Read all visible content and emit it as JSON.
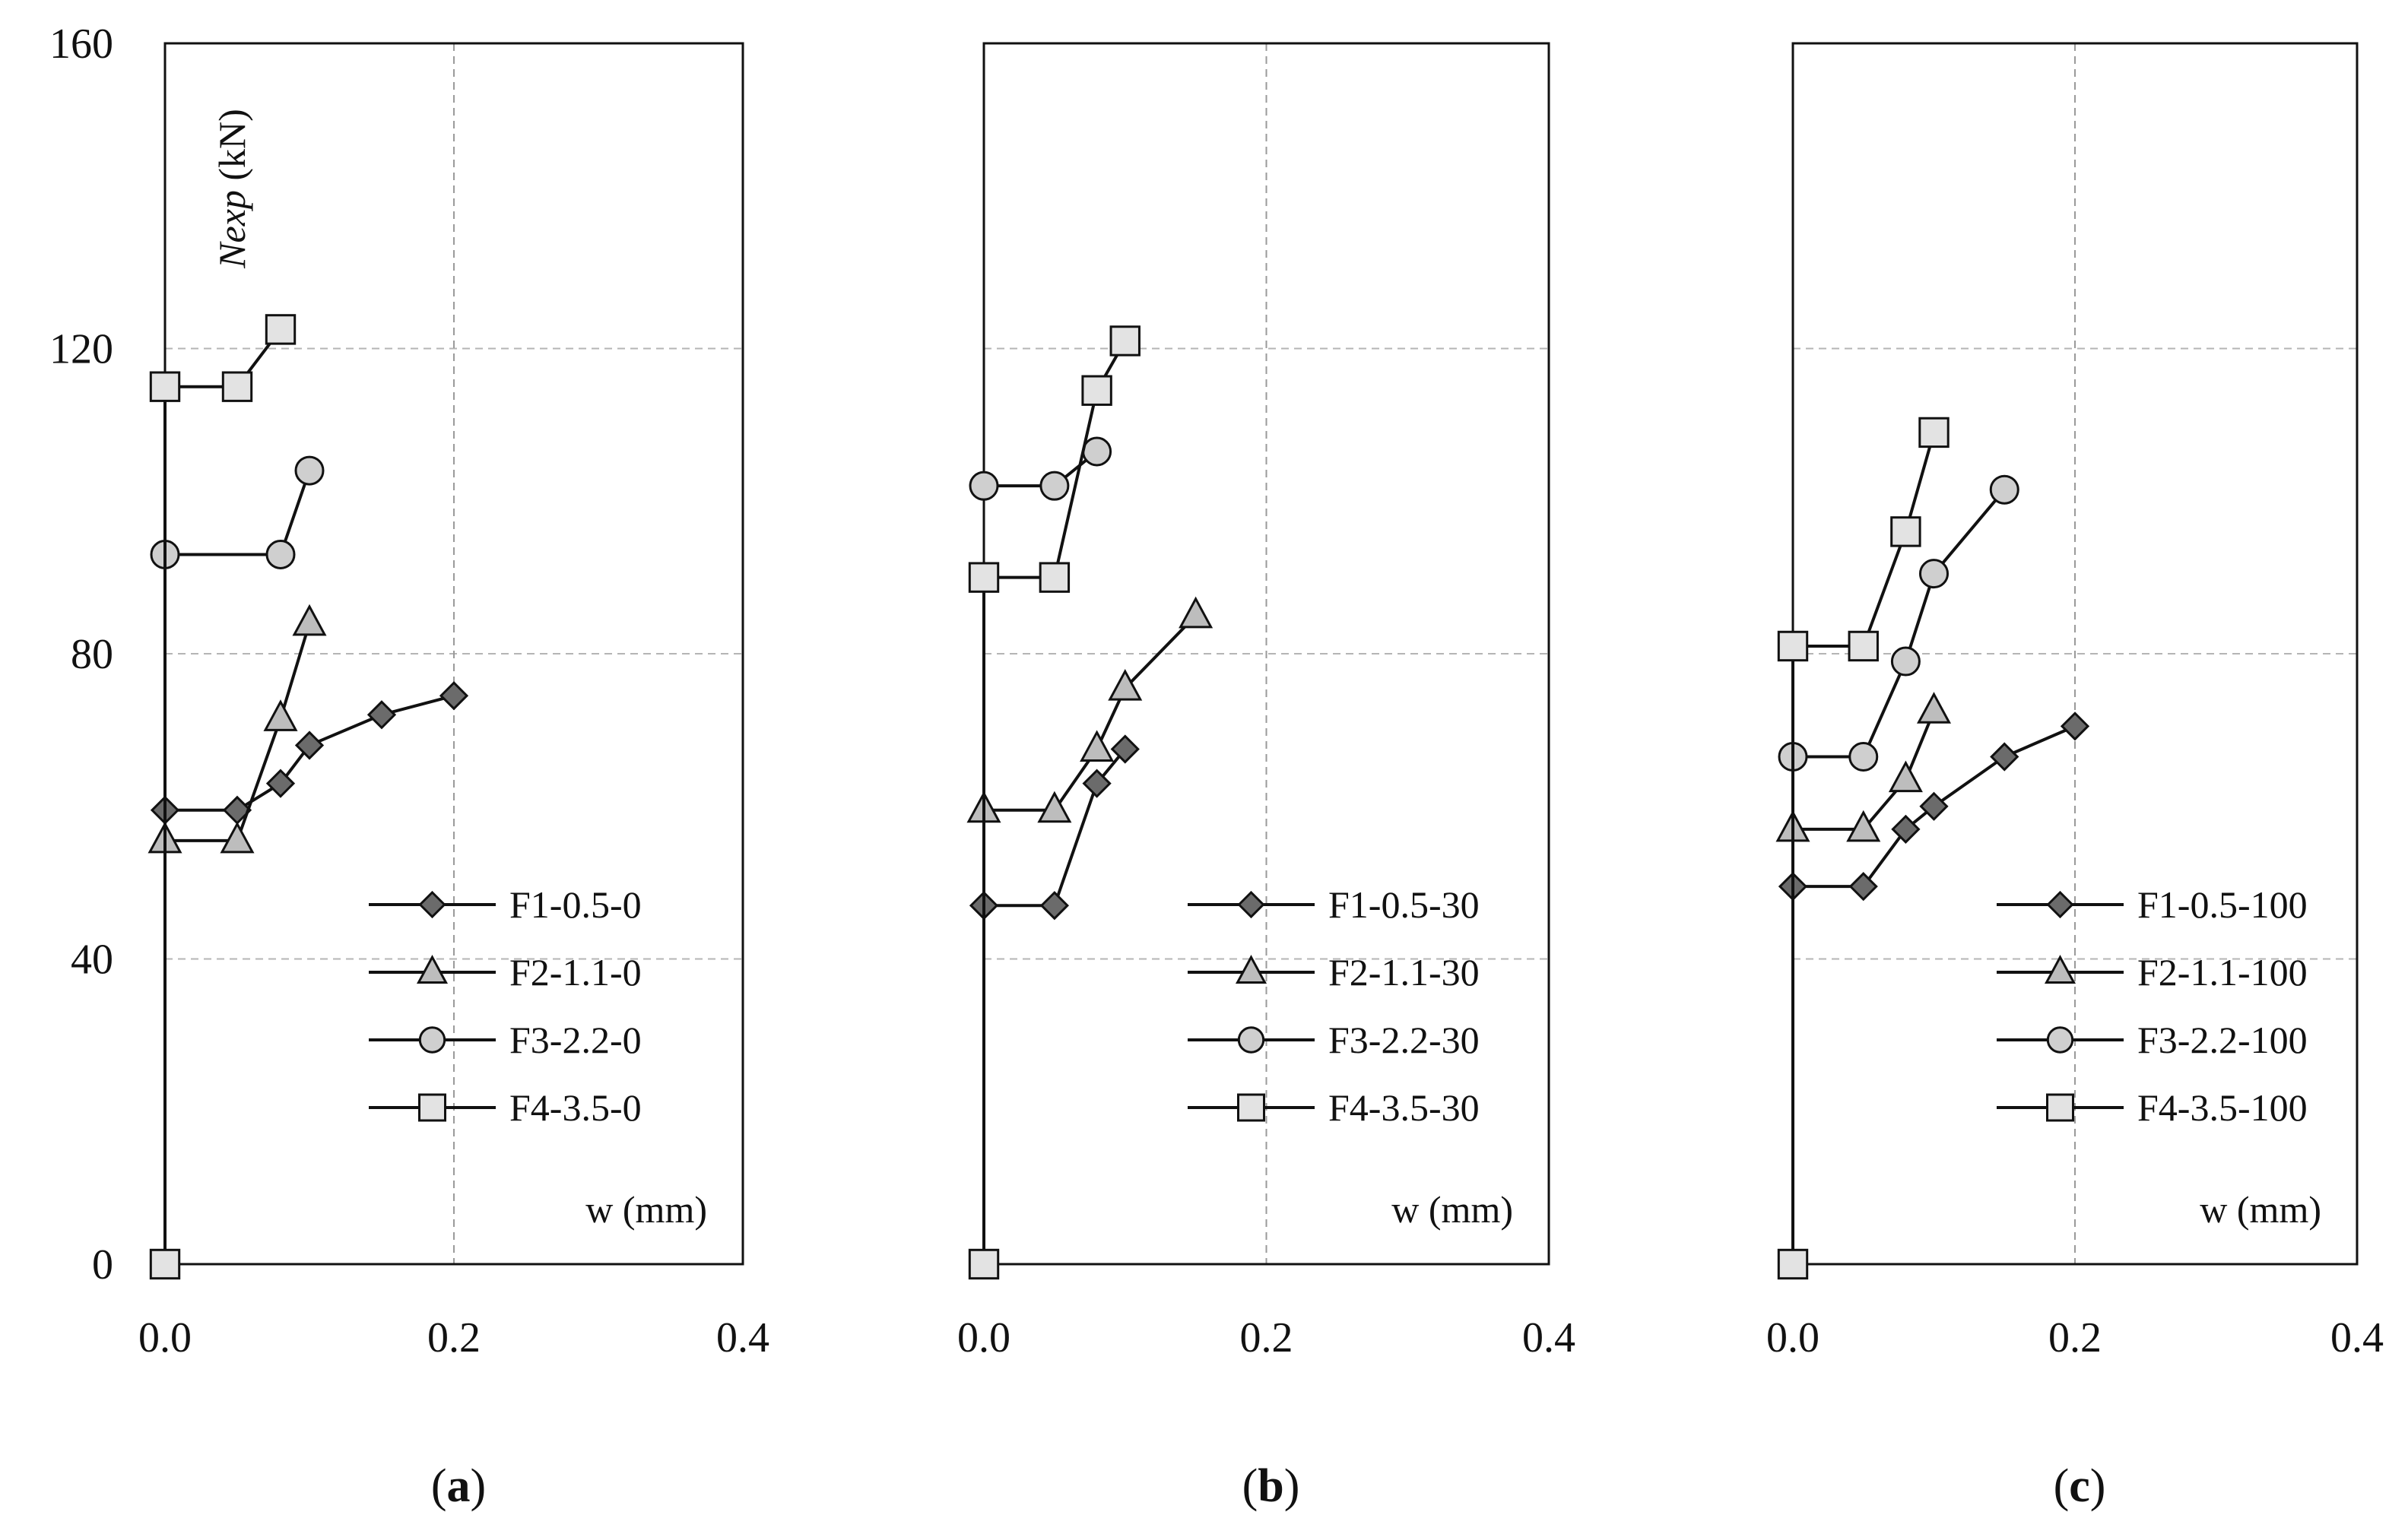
{
  "chart_data": [
    {
      "type": "line",
      "panel_label": [
        "(",
        "a",
        ")"
      ],
      "xlabel": "w (mm)",
      "ylabel": {
        "italic": "Nexp",
        "unit": " (kN)"
      },
      "xlim": [
        0,
        0.4
      ],
      "ylim": [
        0,
        160
      ],
      "x_ticks": [
        "0.0",
        "0.2",
        "0.4"
      ],
      "y_ticks": [
        "0",
        "40",
        "80",
        "120",
        "160"
      ],
      "legend_position": "lower-right",
      "series": [
        {
          "name": "F1-0.5-0",
          "marker": "diamond",
          "x": [
            0,
            0.05,
            0.08,
            0.1,
            0.15,
            0.2
          ],
          "y": [
            59.5,
            59.5,
            63,
            68,
            72,
            74.5
          ]
        },
        {
          "name": "F2-1.1-0",
          "marker": "triangle",
          "x": [
            0,
            0.05,
            0.08,
            0.1
          ],
          "y": [
            55.5,
            55.5,
            71.5,
            84
          ]
        },
        {
          "name": "F3-2.2-0",
          "marker": "circle",
          "x": [
            0,
            0.08,
            0.1
          ],
          "y": [
            93,
            93,
            104
          ]
        },
        {
          "name": "F4-3.5-0",
          "marker": "square",
          "x": [
            0,
            0,
            0.05,
            0.08
          ],
          "y": [
            0,
            115,
            115,
            122.5
          ]
        }
      ]
    },
    {
      "type": "line",
      "panel_label": [
        "(",
        "b",
        ")"
      ],
      "xlabel": "w (mm)",
      "xlim": [
        0,
        0.4
      ],
      "ylim": [
        0,
        160
      ],
      "x_ticks": [
        "0.0",
        "0.2",
        "0.4"
      ],
      "legend_position": "lower-right",
      "series": [
        {
          "name": "F1-0.5-30",
          "marker": "diamond",
          "x": [
            0,
            0.05,
            0.08,
            0.1
          ],
          "y": [
            47,
            47,
            63,
            67.5
          ]
        },
        {
          "name": "F2-1.1-30",
          "marker": "triangle",
          "x": [
            0,
            0.05,
            0.08,
            0.1,
            0.15
          ],
          "y": [
            59.5,
            59.5,
            67.5,
            75.5,
            85
          ]
        },
        {
          "name": "F3-2.2-30",
          "marker": "circle",
          "x": [
            0,
            0.05,
            0.08
          ],
          "y": [
            102,
            102,
            106.5
          ]
        },
        {
          "name": "F4-3.5-30",
          "marker": "square",
          "x": [
            0,
            0,
            0.05,
            0.08,
            0.1
          ],
          "y": [
            0,
            90,
            90,
            114.5,
            121
          ]
        }
      ]
    },
    {
      "type": "line",
      "panel_label": [
        "(",
        "c",
        ")"
      ],
      "xlabel": "w (mm)",
      "xlim": [
        0,
        0.4
      ],
      "ylim": [
        0,
        160
      ],
      "x_ticks": [
        "0.0",
        "0.2",
        "0.4"
      ],
      "legend_position": "lower-right",
      "series": [
        {
          "name": "F1-0.5-100",
          "marker": "diamond",
          "x": [
            0,
            0.05,
            0.08,
            0.1,
            0.15,
            0.2
          ],
          "y": [
            49.5,
            49.5,
            57,
            60,
            66.5,
            70.5
          ]
        },
        {
          "name": "F2-1.1-100",
          "marker": "triangle",
          "x": [
            0,
            0.05,
            0.08,
            0.1
          ],
          "y": [
            57,
            57,
            63.5,
            72.5
          ]
        },
        {
          "name": "F3-2.2-100",
          "marker": "circle",
          "x": [
            0,
            0.05,
            0.08,
            0.1,
            0.15
          ],
          "y": [
            66.5,
            66.5,
            79,
            90.5,
            101.5
          ]
        },
        {
          "name": "F4-3.5-100",
          "marker": "square",
          "x": [
            0,
            0,
            0.05,
            0.08,
            0.1
          ],
          "y": [
            0,
            81,
            81,
            96,
            109
          ]
        }
      ]
    }
  ]
}
